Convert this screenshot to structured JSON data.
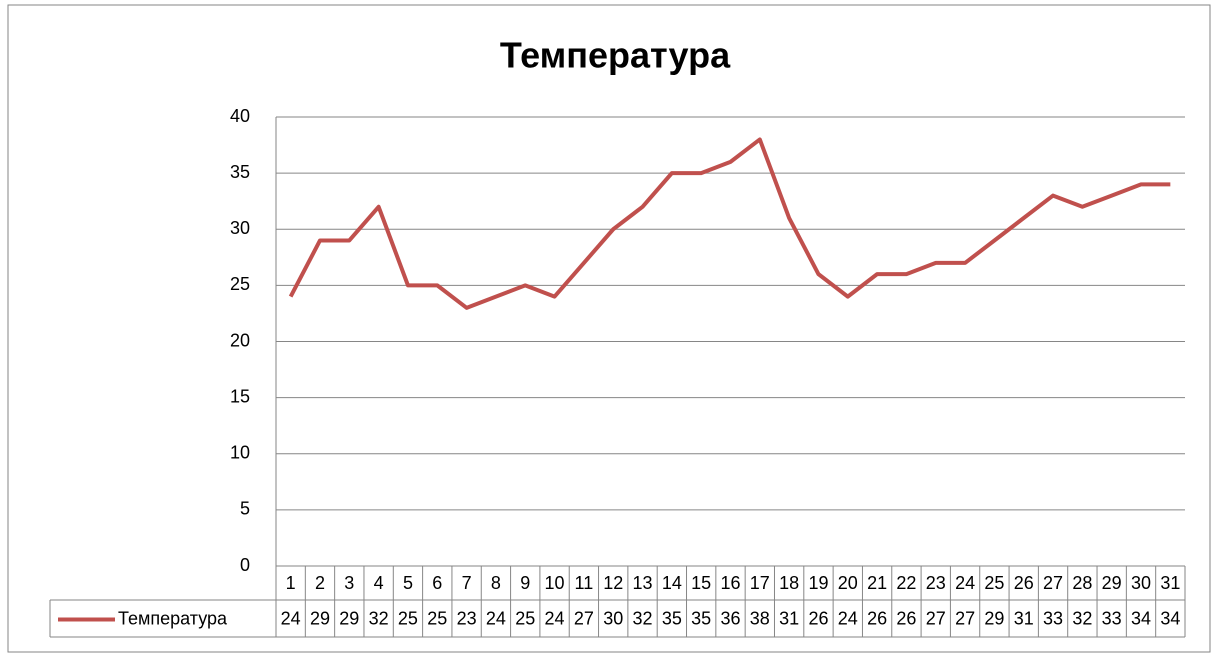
{
  "chart_data": {
    "type": "line",
    "title": "Температура",
    "categories": [
      "1",
      "2",
      "3",
      "4",
      "5",
      "6",
      "7",
      "8",
      "9",
      "10",
      "11",
      "12",
      "13",
      "14",
      "15",
      "16",
      "17",
      "18",
      "19",
      "20",
      "21",
      "22",
      "23",
      "24",
      "25",
      "26",
      "27",
      "28",
      "29",
      "30",
      "31"
    ],
    "series": [
      {
        "name": "Температура",
        "color": "#c0504d",
        "values": [
          24,
          29,
          29,
          32,
          25,
          25,
          23,
          24,
          25,
          24,
          27,
          30,
          32,
          35,
          35,
          36,
          38,
          31,
          26,
          24,
          26,
          26,
          27,
          27,
          29,
          31,
          33,
          32,
          33,
          34,
          34
        ]
      }
    ],
    "ylim": [
      0,
      40
    ],
    "yticks": [
      0,
      5,
      10,
      15,
      20,
      25,
      30,
      35,
      40
    ],
    "grid": true,
    "data_table": true
  }
}
